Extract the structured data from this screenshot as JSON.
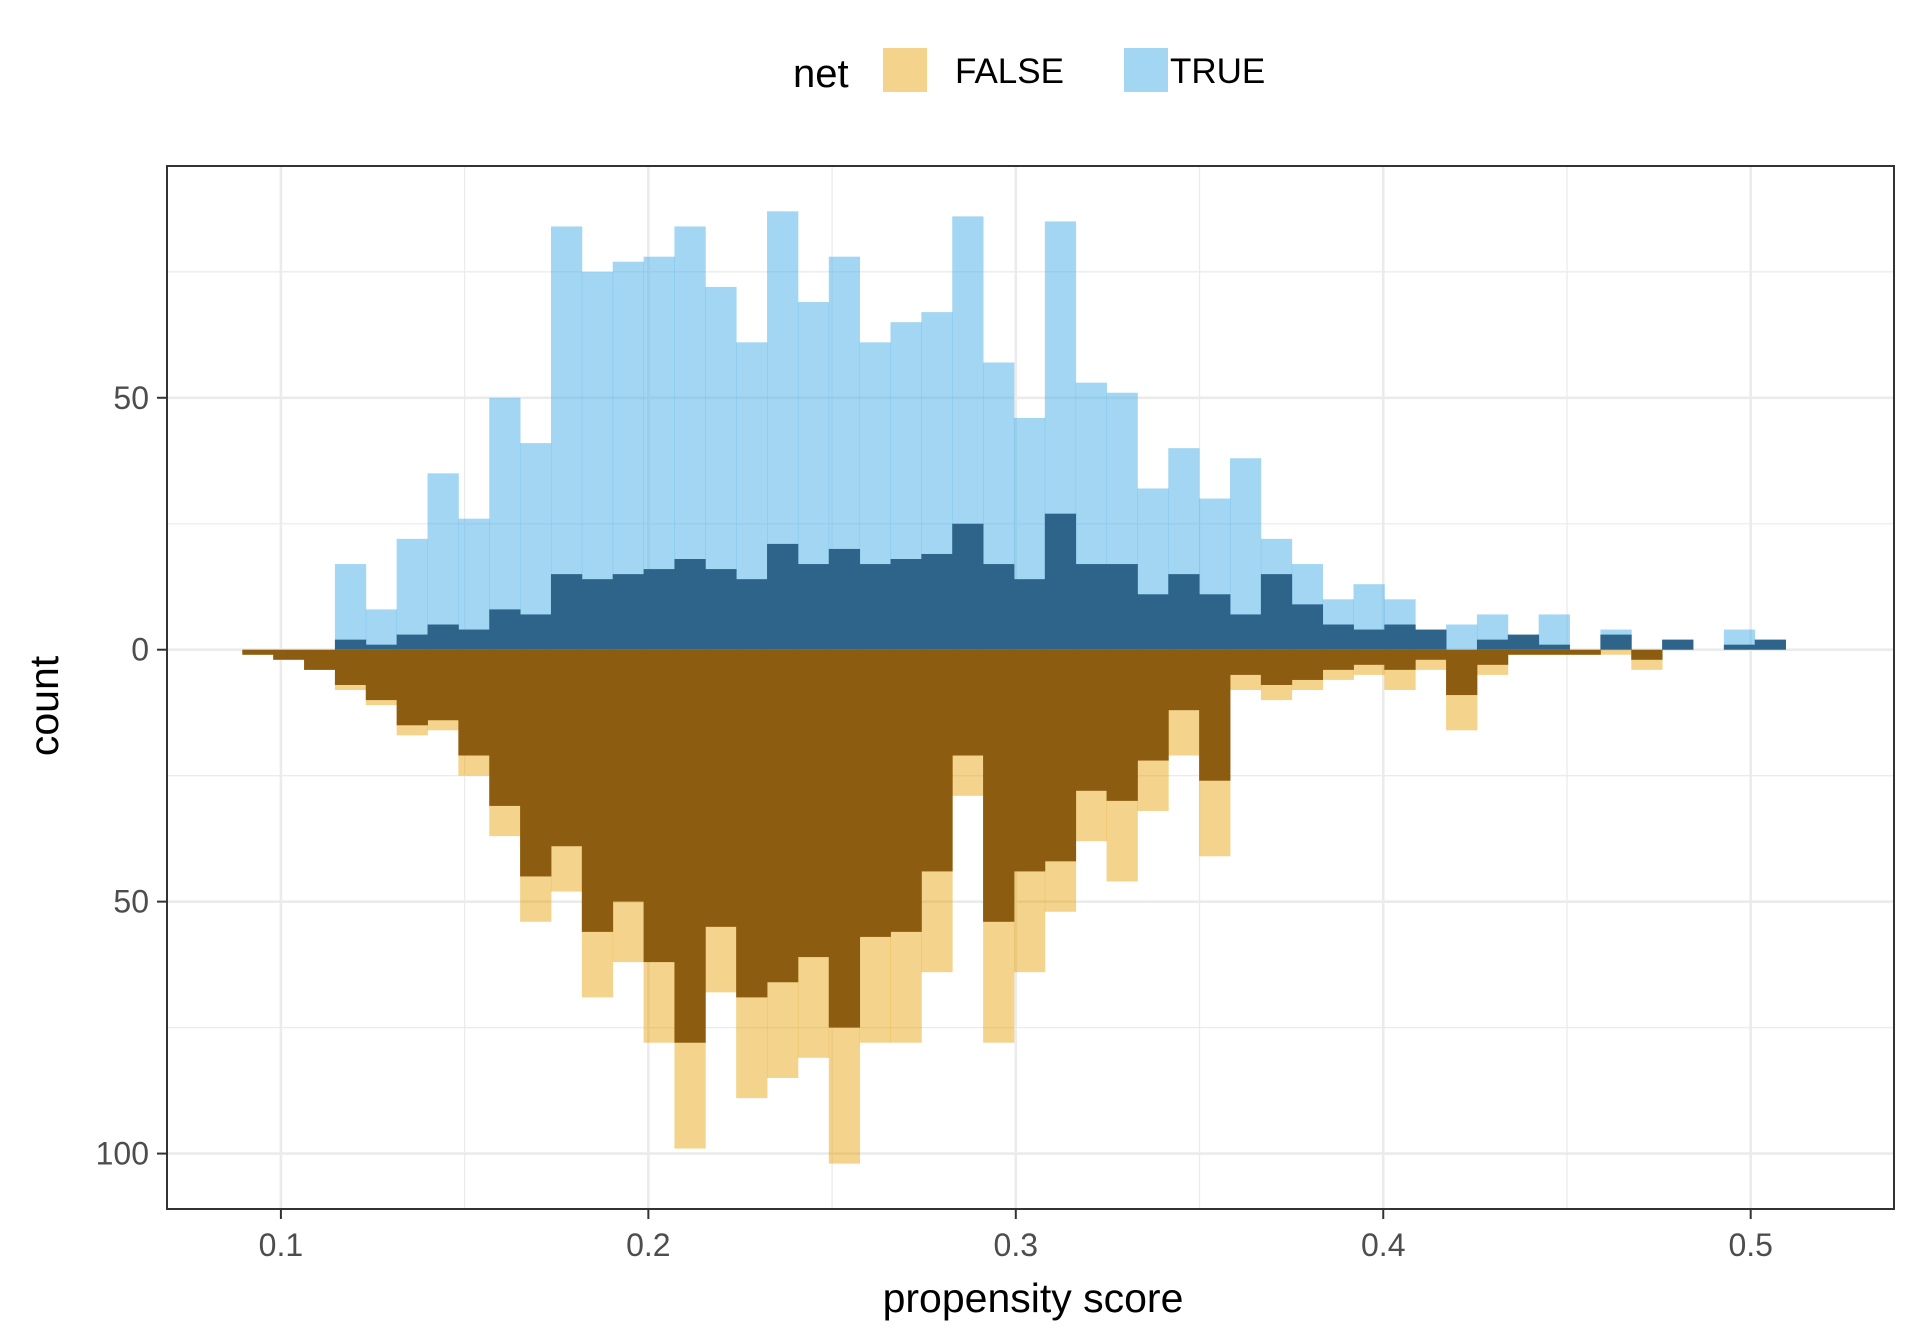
{
  "chart_data": {
    "type": "histogram",
    "title": "",
    "xlabel": "propensity score",
    "ylabel": "count",
    "xlim": [
      0.069,
      0.539
    ],
    "ylim": [
      -111,
      96
    ],
    "x_ticks": [
      0.1,
      0.2,
      0.3,
      0.4,
      0.5
    ],
    "x_tick_labels": [
      "0.1",
      "0.2",
      "0.3",
      "0.4",
      "0.5"
    ],
    "y_ticks": [
      50,
      0,
      -50,
      -100
    ],
    "y_tick_labels": [
      "50",
      "0",
      "50",
      "100"
    ],
    "grid": true,
    "legend": {
      "title": "net",
      "position": "top",
      "entries": [
        "FALSE",
        "TRUE"
      ]
    },
    "colors": {
      "false_fill": "#E69F00",
      "true_fill": "#56B4E9",
      "false_weighted": "#8C5C10",
      "true_weighted": "#2E6489",
      "grid": "#EBEBEB",
      "panel_border": "#333333",
      "axis_text": "#4D4D4D"
    },
    "bin_width": 0.0084,
    "bin_starts": [
      0.0895,
      0.0979,
      0.1063,
      0.1147,
      0.1231,
      0.1315,
      0.1399,
      0.1483,
      0.1567,
      0.1651,
      0.1735,
      0.1819,
      0.1903,
      0.1987,
      0.2071,
      0.2155,
      0.2239,
      0.2323,
      0.2407,
      0.2491,
      0.2575,
      0.2659,
      0.2743,
      0.2827,
      0.2911,
      0.2995,
      0.3079,
      0.3163,
      0.3247,
      0.3331,
      0.3415,
      0.3499,
      0.3583,
      0.3667,
      0.3751,
      0.3835,
      0.3919,
      0.4003,
      0.4087,
      0.4171,
      0.4255,
      0.4339,
      0.4423,
      0.4507,
      0.4591,
      0.4675,
      0.4759,
      0.4843,
      0.4927,
      0.5011
    ],
    "series": [
      {
        "name": "TRUE",
        "direction": "up",
        "style": "unweighted",
        "values": [
          0,
          0,
          0,
          17,
          8,
          22,
          35,
          26,
          50,
          41,
          84,
          75,
          77,
          78,
          84,
          72,
          61,
          87,
          69,
          78,
          61,
          65,
          67,
          86,
          57,
          46,
          85,
          53,
          51,
          32,
          40,
          30,
          38,
          22,
          17,
          10,
          13,
          10,
          0,
          5,
          7,
          2,
          7,
          0,
          4,
          0,
          2,
          0,
          4,
          2
        ]
      },
      {
        "name": "TRUE",
        "direction": "up",
        "style": "weighted",
        "values": [
          0,
          0,
          0,
          2,
          1,
          3,
          5,
          4,
          8,
          7,
          15,
          14,
          15,
          16,
          18,
          16,
          14,
          21,
          17,
          20,
          17,
          18,
          19,
          25,
          17,
          14,
          27,
          17,
          17,
          11,
          15,
          11,
          7,
          15,
          9,
          5,
          4,
          5,
          4,
          0,
          2,
          3,
          1,
          0,
          3,
          0,
          2,
          0,
          1,
          2
        ]
      },
      {
        "name": "FALSE",
        "direction": "down",
        "style": "unweighted",
        "values": [
          1,
          2,
          4,
          8,
          11,
          17,
          16,
          25,
          37,
          54,
          48,
          69,
          62,
          78,
          99,
          68,
          89,
          85,
          81,
          102,
          78,
          78,
          64,
          29,
          78,
          64,
          52,
          38,
          46,
          32,
          21,
          41,
          8,
          10,
          8,
          6,
          5,
          8,
          4,
          16,
          5,
          1,
          1,
          1,
          1,
          4,
          0,
          0,
          0,
          0
        ]
      },
      {
        "name": "FALSE",
        "direction": "down",
        "style": "weighted",
        "values": [
          1,
          2,
          4,
          7,
          10,
          15,
          14,
          21,
          31,
          45,
          39,
          56,
          50,
          62,
          78,
          55,
          69,
          66,
          61,
          75,
          57,
          56,
          44,
          21,
          54,
          44,
          42,
          28,
          30,
          22,
          12,
          26,
          5,
          7,
          6,
          4,
          3,
          4,
          2,
          9,
          3,
          1,
          1,
          1,
          0,
          2,
          0,
          0,
          0,
          0
        ]
      }
    ]
  }
}
